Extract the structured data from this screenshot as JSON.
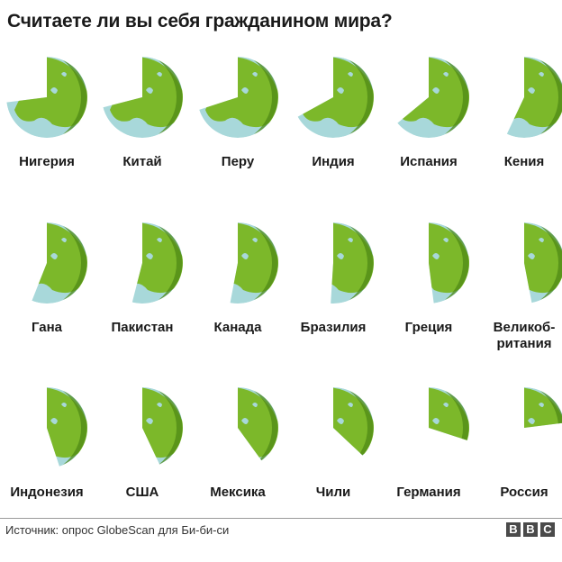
{
  "title": "Считаете ли вы себя гражданином мира?",
  "source": "Источник: опрос GlobeScan для Би-би-си",
  "logo": [
    "B",
    "B",
    "C"
  ],
  "colors": {
    "land": "#7cb82a",
    "land_dark": "#5f9a1c",
    "ocean": "#a8d8da",
    "land_rim": "#4f8a15"
  },
  "chart_data": {
    "type": "pie",
    "title": "Считаете ли вы себя гражданином мира?",
    "unit": "доля ответивших «да», %",
    "categories": [
      "Нигерия",
      "Китай",
      "Перу",
      "Индия",
      "Испания",
      "Кения",
      "Гана",
      "Пакистан",
      "Канада",
      "Бразилия",
      "Греция",
      "Великобритания",
      "Индонезия",
      "США",
      "Мексика",
      "Чили",
      "Германия",
      "Россия"
    ],
    "labels": [
      [
        "Нигерия"
      ],
      [
        "Китай"
      ],
      [
        "Перу"
      ],
      [
        "Индия"
      ],
      [
        "Испания"
      ],
      [
        "Кения"
      ],
      [
        "Гана"
      ],
      [
        "Пакистан"
      ],
      [
        "Канада"
      ],
      [
        "Бразилия"
      ],
      [
        "Греция"
      ],
      [
        "Великоб-",
        "ритания"
      ],
      [
        "Индонезия"
      ],
      [
        "США"
      ],
      [
        "Мексика"
      ],
      [
        "Чили"
      ],
      [
        "Германия"
      ],
      [
        "Россия"
      ]
    ],
    "values": [
      73,
      71,
      70,
      67,
      64,
      57,
      56,
      54,
      53,
      51,
      48,
      47,
      45,
      43,
      40,
      37,
      30,
      23
    ]
  }
}
